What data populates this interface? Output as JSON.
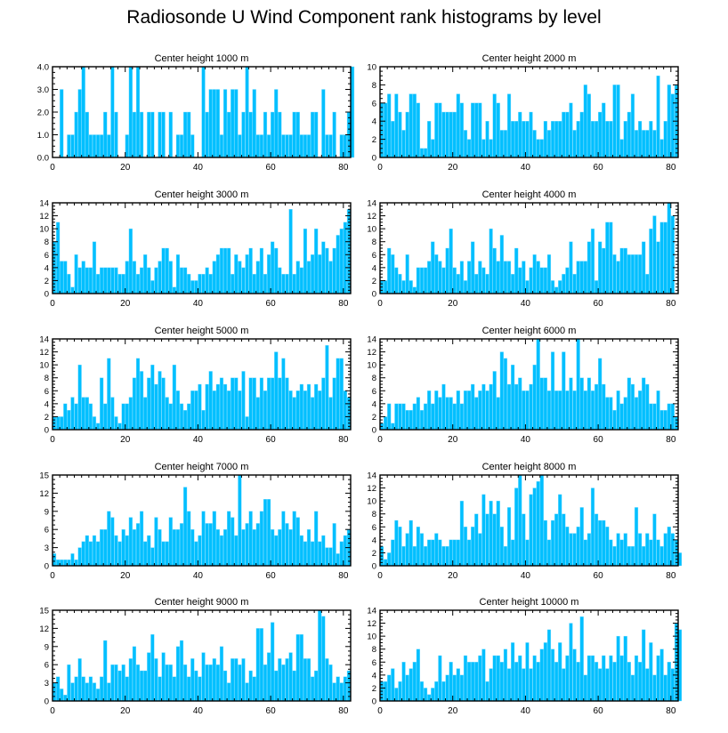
{
  "figure": {
    "title": "Radiosonde U Wind Component rank histograms by level",
    "bar_color": "#00BFFF",
    "bar_edge_color": "#7FDDFF"
  },
  "chart_data": [
    {
      "type": "bar",
      "title": "Center height 1000 m",
      "xlabel": "",
      "ylabel": "",
      "xlim": [
        0,
        82
      ],
      "ylim": [
        0,
        4
      ],
      "xticks": [
        0,
        20,
        40,
        60,
        80
      ],
      "yticks": [
        0,
        1,
        2,
        3,
        4
      ],
      "ytick_labels": [
        "0.0",
        "1.0",
        "2.0",
        "3.0",
        "4.0"
      ],
      "values": [
        0,
        0,
        3,
        0,
        1,
        1,
        2,
        3,
        4,
        2,
        1,
        1,
        1,
        1,
        2,
        1,
        4,
        2,
        0,
        0,
        1,
        4,
        2,
        4,
        2,
        0,
        2,
        2,
        0,
        2,
        2,
        0,
        2,
        0,
        1,
        1,
        2,
        2,
        1,
        0,
        0,
        4,
        2,
        3,
        3,
        3,
        1,
        3,
        2,
        3,
        3,
        1,
        2,
        4,
        2,
        3,
        1,
        1,
        2,
        1,
        2,
        3,
        2,
        1,
        1,
        1,
        2,
        2,
        1,
        1,
        1,
        2,
        2,
        0,
        3,
        1,
        1,
        2,
        0,
        1,
        1,
        2,
        4
      ]
    },
    {
      "type": "bar",
      "title": "Center height 2000 m",
      "xlabel": "",
      "ylabel": "",
      "xlim": [
        0,
        82
      ],
      "ylim": [
        0,
        10
      ],
      "xticks": [
        0,
        20,
        40,
        60,
        80
      ],
      "yticks": [
        0,
        2,
        4,
        6,
        8,
        10
      ],
      "ytick_labels": [
        "0",
        "2",
        "4",
        "6",
        "8",
        "10"
      ],
      "values": [
        6,
        6,
        7,
        4,
        7,
        5,
        3,
        5,
        7,
        7,
        6,
        1,
        1,
        4,
        2,
        6,
        6,
        5,
        5,
        5,
        5,
        7,
        6,
        3,
        2,
        6,
        6,
        6,
        2,
        4,
        2,
        7,
        6,
        3,
        3,
        7,
        4,
        4,
        5,
        4,
        4,
        5,
        3,
        2,
        2,
        4,
        3,
        4,
        4,
        4,
        5,
        5,
        6,
        3,
        4,
        5,
        8,
        7,
        4,
        4,
        5,
        6,
        4,
        4,
        8,
        8,
        2,
        4,
        5,
        7,
        3,
        4,
        3,
        3,
        4,
        3,
        9,
        2,
        4,
        8,
        7,
        8
      ]
    },
    {
      "type": "bar",
      "title": "Center height 3000 m",
      "xlabel": "",
      "ylabel": "",
      "xlim": [
        0,
        82
      ],
      "ylim": [
        0,
        14
      ],
      "xticks": [
        0,
        20,
        40,
        60,
        80
      ],
      "yticks": [
        0,
        2,
        4,
        6,
        8,
        10,
        12,
        14
      ],
      "ytick_labels": [
        "0",
        "2",
        "4",
        "6",
        "8",
        "10",
        "12",
        "14"
      ],
      "values": [
        8,
        11,
        5,
        5,
        3,
        1,
        6,
        4,
        5,
        4,
        4,
        8,
        3,
        4,
        4,
        4,
        4,
        4,
        3,
        3,
        5,
        10,
        5,
        3,
        4,
        6,
        4,
        2,
        4,
        5,
        7,
        7,
        5,
        1,
        6,
        4,
        4,
        3,
        2,
        2,
        3,
        3,
        4,
        3,
        5,
        6,
        7,
        7,
        7,
        3,
        6,
        5,
        4,
        6,
        7,
        3,
        5,
        7,
        3,
        6,
        8,
        7,
        4,
        3,
        3,
        13,
        3,
        5,
        4,
        10,
        5,
        6,
        10,
        6,
        8,
        7,
        5,
        7,
        9,
        10,
        11,
        13
      ]
    },
    {
      "type": "bar",
      "title": "Center height 4000 m",
      "xlabel": "",
      "ylabel": "",
      "xlim": [
        0,
        82
      ],
      "ylim": [
        0,
        14
      ],
      "xticks": [
        0,
        20,
        40,
        60,
        80
      ],
      "yticks": [
        0,
        2,
        4,
        6,
        8,
        10,
        12,
        14
      ],
      "ytick_labels": [
        "0",
        "2",
        "4",
        "6",
        "8",
        "10",
        "12",
        "14"
      ],
      "values": [
        2,
        2,
        7,
        6,
        4,
        3,
        2,
        6,
        2,
        1,
        4,
        4,
        4,
        5,
        8,
        6,
        5,
        4,
        7,
        10,
        4,
        3,
        5,
        2,
        5,
        8,
        3,
        5,
        4,
        3,
        10,
        7,
        5,
        9,
        5,
        5,
        3,
        7,
        4,
        5,
        2,
        4,
        6,
        5,
        4,
        4,
        6,
        2,
        1,
        2,
        3,
        4,
        8,
        3,
        5,
        5,
        5,
        8,
        10,
        2,
        8,
        7,
        11,
        11,
        6,
        5,
        7,
        7,
        6,
        6,
        6,
        6,
        8,
        3,
        10,
        12,
        8,
        11,
        11,
        14,
        12
      ]
    },
    {
      "type": "bar",
      "title": "Center height 5000 m",
      "xlabel": "",
      "ylabel": "",
      "xlim": [
        0,
        82
      ],
      "ylim": [
        0,
        14
      ],
      "xticks": [
        0,
        20,
        40,
        60,
        80
      ],
      "yticks": [
        0,
        2,
        4,
        6,
        8,
        10,
        12,
        14
      ],
      "ytick_labels": [
        "0",
        "2",
        "4",
        "6",
        "8",
        "10",
        "12",
        "14"
      ],
      "values": [
        2,
        2,
        2,
        4,
        3,
        5,
        4,
        10,
        5,
        5,
        4,
        2,
        1,
        8,
        4,
        11,
        5,
        2,
        1,
        4,
        4,
        5,
        8,
        11,
        9,
        5,
        8,
        10,
        7,
        9,
        8,
        5,
        4,
        10,
        6,
        4,
        3,
        4,
        6,
        6,
        7,
        3,
        7,
        9,
        6,
        7,
        8,
        7,
        6,
        8,
        8,
        6,
        9,
        2,
        8,
        8,
        5,
        8,
        6,
        8,
        8,
        12,
        8,
        11,
        8,
        6,
        5,
        6,
        7,
        6,
        7,
        5,
        7,
        6,
        8,
        13,
        5,
        8,
        11,
        11,
        6,
        5
      ]
    },
    {
      "type": "bar",
      "title": "Center height 6000 m",
      "xlabel": "",
      "ylabel": "",
      "xlim": [
        0,
        82
      ],
      "ylim": [
        0,
        14
      ],
      "xticks": [
        0,
        20,
        40,
        60,
        80
      ],
      "yticks": [
        0,
        2,
        4,
        6,
        8,
        10,
        12,
        14
      ],
      "ytick_labels": [
        "0",
        "2",
        "4",
        "6",
        "8",
        "10",
        "12",
        "14"
      ],
      "values": [
        1,
        2,
        4,
        1,
        4,
        4,
        4,
        3,
        3,
        4,
        5,
        3,
        4,
        6,
        4,
        6,
        5,
        7,
        5,
        5,
        4,
        6,
        4,
        6,
        6,
        7,
        5,
        6,
        7,
        6,
        7,
        9,
        5,
        12,
        11,
        7,
        10,
        7,
        8,
        6,
        6,
        7,
        10,
        14,
        8,
        8,
        6,
        12,
        6,
        6,
        12,
        6,
        8,
        6,
        14,
        8,
        6,
        8,
        6,
        7,
        11,
        7,
        5,
        5,
        3,
        6,
        4,
        5,
        8,
        7,
        5,
        6,
        8,
        7,
        4,
        4,
        6,
        3,
        3,
        4,
        4,
        2
      ]
    },
    {
      "type": "bar",
      "title": "Center height 7000 m",
      "xlabel": "",
      "ylabel": "",
      "xlim": [
        0,
        82
      ],
      "ylim": [
        0,
        15
      ],
      "xticks": [
        0,
        20,
        40,
        60,
        80
      ],
      "yticks": [
        0,
        3,
        6,
        9,
        12,
        15
      ],
      "ytick_labels": [
        "0",
        "3",
        "6",
        "9",
        "12",
        "15"
      ],
      "values": [
        2,
        1,
        1,
        1,
        1,
        2,
        1,
        3,
        4,
        5,
        4,
        5,
        4,
        6,
        6,
        9,
        8,
        5,
        4,
        6,
        5,
        8,
        6,
        7,
        9,
        4,
        5,
        3,
        8,
        6,
        4,
        4,
        8,
        6,
        6,
        7,
        13,
        9,
        6,
        4,
        5,
        9,
        7,
        7,
        9,
        6,
        5,
        6,
        9,
        8,
        5,
        15,
        6,
        7,
        9,
        6,
        7,
        9,
        11,
        11,
        6,
        5,
        6,
        9,
        7,
        6,
        9,
        8,
        5,
        4,
        6,
        4,
        9,
        4,
        5,
        3,
        3,
        7,
        2,
        4,
        5,
        6
      ]
    },
    {
      "type": "bar",
      "title": "Center height 8000 m",
      "xlabel": "",
      "ylabel": "",
      "xlim": [
        0,
        82
      ],
      "ylim": [
        0,
        14
      ],
      "xticks": [
        0,
        20,
        40,
        60,
        80
      ],
      "yticks": [
        0,
        2,
        4,
        6,
        8,
        10,
        12,
        14
      ],
      "ytick_labels": [
        "0",
        "2",
        "4",
        "6",
        "8",
        "10",
        "12",
        "14"
      ],
      "values": [
        3,
        1,
        2,
        4,
        7,
        6,
        3,
        5,
        7,
        3,
        6,
        5,
        3,
        4,
        4,
        5,
        4,
        3,
        3,
        4,
        4,
        4,
        10,
        6,
        4,
        6,
        8,
        5,
        11,
        8,
        10,
        8,
        10,
        6,
        3,
        9,
        4,
        12,
        14,
        8,
        4,
        11,
        12,
        13,
        14,
        7,
        4,
        7,
        8,
        11,
        8,
        6,
        5,
        5,
        6,
        9,
        4,
        5,
        12,
        8,
        7,
        7,
        6,
        4,
        3,
        5,
        4,
        5,
        3,
        3,
        9,
        5,
        3,
        5,
        4,
        8,
        4,
        3,
        5,
        6,
        5,
        4,
        2
      ]
    },
    {
      "type": "bar",
      "title": "Center height 9000 m",
      "xlabel": "",
      "ylabel": "",
      "xlim": [
        0,
        82
      ],
      "ylim": [
        0,
        15
      ],
      "xticks": [
        0,
        20,
        40,
        60,
        80
      ],
      "yticks": [
        0,
        3,
        6,
        9,
        12,
        15
      ],
      "ytick_labels": [
        "0",
        "3",
        "6",
        "9",
        "12",
        "15"
      ],
      "values": [
        3,
        4,
        2,
        1,
        6,
        3,
        4,
        7,
        4,
        3,
        4,
        3,
        2,
        4,
        10,
        3,
        6,
        6,
        5,
        6,
        4,
        7,
        9,
        6,
        5,
        5,
        8,
        11,
        7,
        4,
        8,
        6,
        6,
        4,
        9,
        10,
        6,
        4,
        7,
        5,
        4,
        8,
        6,
        6,
        7,
        6,
        9,
        5,
        3,
        7,
        7,
        6,
        7,
        3,
        5,
        4,
        12,
        12,
        6,
        8,
        13,
        5,
        7,
        6,
        7,
        8,
        5,
        11,
        11,
        7,
        7,
        4,
        5,
        15,
        14,
        7,
        6,
        3,
        4,
        3,
        4,
        5
      ]
    },
    {
      "type": "bar",
      "title": "Center height 10000 m",
      "xlabel": "",
      "ylabel": "",
      "xlim": [
        0,
        82
      ],
      "ylim": [
        0,
        14
      ],
      "xticks": [
        0,
        20,
        40,
        60,
        80
      ],
      "yticks": [
        0,
        2,
        4,
        6,
        8,
        10,
        12,
        14
      ],
      "ytick_labels": [
        "0",
        "2",
        "4",
        "6",
        "8",
        "10",
        "12",
        "14"
      ],
      "values": [
        3,
        3,
        4,
        5,
        2,
        3,
        6,
        4,
        5,
        6,
        8,
        3,
        2,
        1,
        2,
        3,
        7,
        3,
        4,
        6,
        4,
        5,
        4,
        7,
        6,
        6,
        6,
        7,
        8,
        3,
        5,
        7,
        7,
        6,
        8,
        5,
        9,
        6,
        7,
        5,
        9,
        5,
        7,
        6,
        8,
        9,
        11,
        8,
        6,
        9,
        5,
        7,
        12,
        8,
        6,
        13,
        4,
        7,
        7,
        6,
        5,
        7,
        5,
        7,
        6,
        10,
        7,
        10,
        6,
        4,
        7,
        6,
        11,
        5,
        9,
        4,
        7,
        8,
        4,
        6,
        5,
        12,
        11
      ]
    }
  ]
}
